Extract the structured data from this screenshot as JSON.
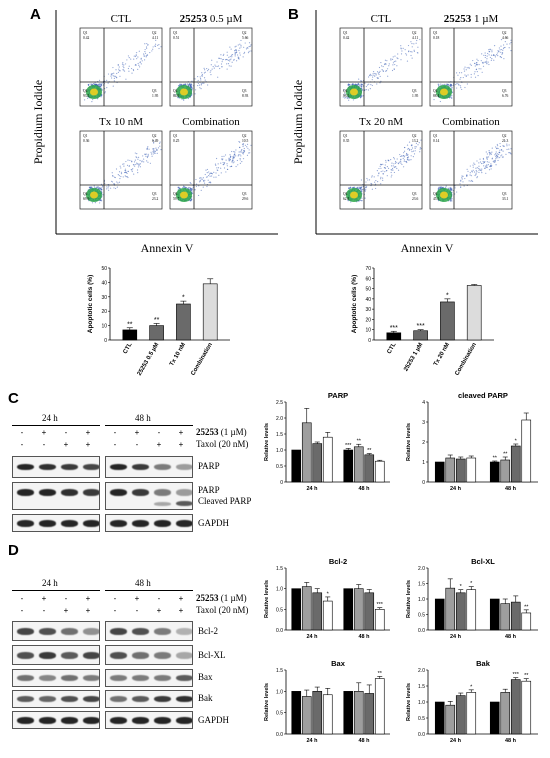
{
  "panels": {
    "A": "A",
    "B": "B",
    "C": "C",
    "D": "D"
  },
  "flowA": {
    "labels": {
      "ctl": "CTL",
      "drug_bold": "25253",
      "drug_rest": " 0.5 µM",
      "tx": "Tx 10 nM",
      "combo": "Combination"
    },
    "ylabel": "Propidium Iodide",
    "xlabel": "Annexin V",
    "quad": [
      {
        "q1": "Q1",
        "q1v": "0.42",
        "q2": "Q2",
        "q2v": "4.11",
        "q3": "Q3",
        "q3v": "1.95",
        "q4": "Q4",
        "q4v": "93.5"
      },
      {
        "q1": "Q1",
        "q1v": "0.51",
        "q2": "Q2",
        "q2v": "5.66",
        "q3": "Q3",
        "q3v": "8.93",
        "q4": "Q4",
        "q4v": "84.9"
      },
      {
        "q1": "Q1",
        "q1v": "0.36",
        "q2": "Q2",
        "q2v": "6.49",
        "q3": "Q3",
        "q3v": "23.2",
        "q4": "Q4",
        "q4v": "69.9"
      },
      {
        "q1": "Q1",
        "q1v": "0.25",
        "q2": "Q2",
        "q2v": "10.5",
        "q3": "Q3",
        "q3v": "29.6",
        "q4": "Q4",
        "q4v": "59.7"
      }
    ]
  },
  "flowB": {
    "labels": {
      "ctl": "CTL",
      "drug_bold": "25253",
      "drug_rest": " 1 µM",
      "tx": "Tx 20 nM",
      "combo": "Combination"
    },
    "ylabel": "Propidium Iodide",
    "xlabel": "Annexin V",
    "quad": [
      {
        "q1": "Q1",
        "q1v": "0.42",
        "q2": "Q2",
        "q2v": "4.11",
        "q3": "Q3",
        "q3v": "1.95",
        "q4": "Q4",
        "q4v": "93.5"
      },
      {
        "q1": "Q1",
        "q1v": "0.18",
        "q2": "Q2",
        "q2v": "4.66",
        "q3": "Q3",
        "q3v": "6.76",
        "q4": "Q4",
        "q4v": "88.4"
      },
      {
        "q1": "Q1",
        "q1v": "0.35",
        "q2": "Q2",
        "q2v": "13.2",
        "q3": "Q3",
        "q3v": "23.6",
        "q4": "Q4",
        "q4v": "62.8"
      },
      {
        "q1": "Q1",
        "q1v": "0.14",
        "q2": "Q2",
        "q2v": "21.3",
        "q3": "Q3",
        "q3v": "33.1",
        "q4": "Q4",
        "q4v": "45.5"
      }
    ]
  },
  "colors": {
    "black": "#000000",
    "midgray": "#9e9e9e",
    "darkgray": "#6a6a6a",
    "lightgray": "#dcdcdc",
    "white": "#ffffff"
  },
  "blotC": {
    "time24": "24 h",
    "time48": "48 h",
    "drug_label_bold": "25253",
    "drug_label_rest": " (1 µM)",
    "taxol_label": "Taxol (20 nM)",
    "row1": [
      "-",
      "+",
      "-",
      "+"
    ],
    "row2": [
      "-",
      "-",
      "+",
      "+"
    ],
    "labels": [
      "PARP",
      "PARP",
      "Cleaved PARP",
      "GAPDH"
    ]
  },
  "blotD": {
    "time24": "24 h",
    "time48": "48 h",
    "drug_label_bold": "25253",
    "drug_label_rest": " (1 µM)",
    "taxol_label": "Taxol (20 nM)",
    "row1": [
      "-",
      "+",
      "-",
      "+"
    ],
    "row2": [
      "-",
      "-",
      "+",
      "+"
    ],
    "labels": [
      "Bcl-2",
      "Bcl-XL",
      "Bax",
      "Bak",
      "GAPDH"
    ]
  },
  "chart_data": [
    {
      "type": "bar",
      "id": "A-apoptosis",
      "categories": [
        "CTL",
        "25253 0.5 µM",
        "Tx 10 nM",
        "Combination"
      ],
      "values": [
        7,
        10,
        25,
        39
      ],
      "errors": [
        1.5,
        1.5,
        2,
        3.5
      ],
      "sig": [
        "**",
        "**",
        "*",
        ""
      ],
      "ylabel": "Apoptotic cells (%)",
      "ylim": [
        0,
        50
      ],
      "yticks": [
        0,
        10,
        20,
        30,
        40,
        50
      ]
    },
    {
      "type": "bar",
      "id": "B-apoptosis",
      "categories": [
        "CTL",
        "25253 1 µM",
        "Tx 20 nM",
        "Combination"
      ],
      "values": [
        7,
        9,
        37,
        53
      ],
      "errors": [
        1.5,
        1,
        3,
        1
      ],
      "sig": [
        "***",
        "***",
        "*",
        ""
      ],
      "ylabel": "Apoptotic cells (%)",
      "ylim": [
        0,
        70
      ],
      "yticks": [
        0,
        10,
        20,
        30,
        40,
        50,
        60,
        70
      ]
    },
    {
      "type": "bar",
      "id": "C-parp",
      "title": "PARP",
      "ylabel": "Relative levels",
      "categories": [
        "24 h",
        "48 h"
      ],
      "ylim": [
        0,
        2.5
      ],
      "yticks": [
        "0",
        "0.5",
        "1.0",
        "1.5",
        "2.0",
        "2.5"
      ],
      "series": [
        {
          "values": [
            1.0,
            1.0
          ]
        },
        {
          "values": [
            1.85,
            1.1
          ]
        },
        {
          "values": [
            1.2,
            0.85
          ]
        },
        {
          "values": [
            1.4,
            0.65
          ]
        }
      ],
      "errors": [
        [
          0,
          0.05
        ],
        [
          0.45,
          0.08
        ],
        [
          0.05,
          0.04
        ],
        [
          0.15,
          0.03
        ]
      ],
      "sig": [
        [
          "",
          "",
          "",
          ""
        ],
        [
          "***",
          "**",
          "**",
          ""
        ]
      ]
    },
    {
      "type": "bar",
      "id": "C-cleaved-parp",
      "title": "cleaved PARP",
      "ylabel": "Relative levels",
      "categories": [
        "24 h",
        "48 h"
      ],
      "ylim": [
        0,
        4
      ],
      "yticks": [
        "0",
        "1",
        "2",
        "3",
        "4"
      ],
      "series": [
        {
          "values": [
            1.0,
            1.0
          ]
        },
        {
          "values": [
            1.2,
            1.1
          ]
        },
        {
          "values": [
            1.15,
            1.8
          ]
        },
        {
          "values": [
            1.2,
            3.1
          ]
        }
      ],
      "errors": [
        [
          0,
          0.05
        ],
        [
          0.15,
          0.15
        ],
        [
          0.1,
          0.1
        ],
        [
          0.1,
          0.35
        ]
      ],
      "sig": [
        [
          "",
          "",
          "",
          ""
        ],
        [
          "**",
          "**",
          "*",
          ""
        ]
      ]
    },
    {
      "type": "bar",
      "id": "D-bcl2",
      "title": "Bcl-2",
      "ylabel": "Relative levels",
      "categories": [
        "24 h",
        "48 h"
      ],
      "ylim": [
        0,
        1.5
      ],
      "yticks": [
        "0.0",
        "0.5",
        "1.0",
        "1.5"
      ],
      "series": [
        {
          "values": [
            1.0,
            1.0
          ]
        },
        {
          "values": [
            1.05,
            1.0
          ]
        },
        {
          "values": [
            0.9,
            0.9
          ]
        },
        {
          "values": [
            0.7,
            0.5
          ]
        }
      ],
      "errors": [
        [
          0,
          0
        ],
        [
          0.1,
          0.1
        ],
        [
          0.1,
          0.08
        ],
        [
          0.1,
          0.04
        ]
      ],
      "sig": [
        [
          "",
          "",
          "",
          "*"
        ],
        [
          "",
          "",
          "",
          "***"
        ]
      ]
    },
    {
      "type": "bar",
      "id": "D-bclxl",
      "title": "Bcl-XL",
      "ylabel": "Relative levels",
      "categories": [
        "24 h",
        "48 h"
      ],
      "ylim": [
        0,
        2.0
      ],
      "yticks": [
        "0.0",
        "0.5",
        "1.0",
        "1.5",
        "2.0"
      ],
      "series": [
        {
          "values": [
            1.0,
            1.0
          ]
        },
        {
          "values": [
            1.35,
            0.85
          ]
        },
        {
          "values": [
            1.2,
            0.9
          ]
        },
        {
          "values": [
            1.3,
            0.55
          ]
        }
      ],
      "errors": [
        [
          0,
          0
        ],
        [
          0.3,
          0.15
        ],
        [
          0.1,
          0.2
        ],
        [
          0.1,
          0.1
        ]
      ],
      "sig": [
        [
          "",
          "",
          "*",
          "*"
        ],
        [
          "",
          "",
          "",
          "**"
        ]
      ]
    },
    {
      "type": "bar",
      "id": "D-bax",
      "title": "Bax",
      "ylabel": "Relative levels",
      "categories": [
        "24 h",
        "48 h"
      ],
      "ylim": [
        0,
        1.5
      ],
      "yticks": [
        "0.0",
        "0.5",
        "1.0",
        "1.5"
      ],
      "series": [
        {
          "values": [
            1.0,
            1.0
          ]
        },
        {
          "values": [
            0.88,
            1.0
          ]
        },
        {
          "values": [
            1.0,
            0.95
          ]
        },
        {
          "values": [
            0.92,
            1.3
          ]
        }
      ],
      "errors": [
        [
          0,
          0
        ],
        [
          0.15,
          0.2
        ],
        [
          0.1,
          0.2
        ],
        [
          0.15,
          0.05
        ]
      ],
      "sig": [
        [
          "",
          "",
          "",
          ""
        ],
        [
          "",
          "",
          "",
          "**"
        ]
      ]
    },
    {
      "type": "bar",
      "id": "D-bak",
      "title": "Bak",
      "ylabel": "Relative levels",
      "categories": [
        "24 h",
        "48 h"
      ],
      "ylim": [
        0,
        2.0
      ],
      "yticks": [
        "0.0",
        "0.5",
        "1.0",
        "1.5",
        "2.0"
      ],
      "series": [
        {
          "values": [
            1.0,
            1.0
          ]
        },
        {
          "values": [
            0.9,
            1.3
          ]
        },
        {
          "values": [
            1.2,
            1.7
          ]
        },
        {
          "values": [
            1.3,
            1.65
          ]
        }
      ],
      "errors": [
        [
          0,
          0
        ],
        [
          0.12,
          0.1
        ],
        [
          0.08,
          0.06
        ],
        [
          0.08,
          0.08
        ]
      ],
      "sig": [
        [
          "",
          "",
          "",
          "*"
        ],
        [
          "",
          "",
          "***",
          "**"
        ]
      ]
    }
  ]
}
